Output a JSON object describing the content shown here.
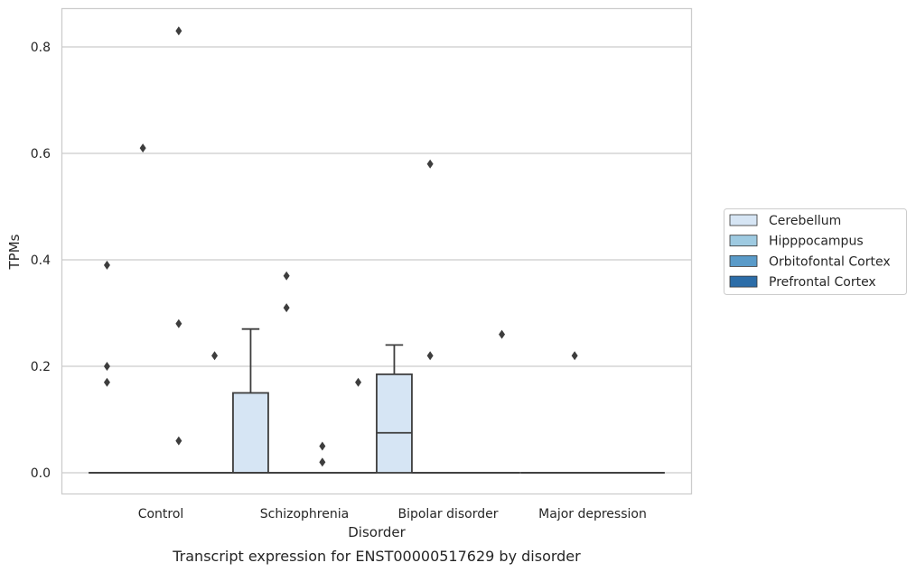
{
  "caption": "Transcript expression for ENST00000517629 by disorder",
  "chart_data": {
    "type": "box",
    "title": "",
    "xlabel": "Disorder",
    "ylabel": "TPMs",
    "ylim": [
      -0.04,
      0.87
    ],
    "yticks": [
      0.0,
      0.2,
      0.4,
      0.6,
      0.8
    ],
    "ytick_labels": [
      "0.0",
      "0.2",
      "0.4",
      "0.6",
      "0.8"
    ],
    "grid": "horizontal",
    "legend_position": "right",
    "categories": [
      "Control",
      "Schizophrenia",
      "Bipolar disorder",
      "Major depression"
    ],
    "series": [
      {
        "name": "Cerebellum",
        "color": "#d6e5f4",
        "boxes": [
          {
            "q1": 0,
            "median": 0,
            "q3": 0,
            "whisker_low": 0,
            "whisker_high": 0,
            "outliers": [
              0.39,
              0.2,
              0.17
            ]
          },
          {
            "q1": 0,
            "median": 0,
            "q3": 0.15,
            "whisker_low": 0,
            "whisker_high": 0.27,
            "outliers": []
          },
          {
            "q1": 0,
            "median": 0.075,
            "q3": 0.185,
            "whisker_low": 0,
            "whisker_high": 0.24,
            "outliers": []
          },
          {
            "q1": 0,
            "median": 0,
            "q3": 0,
            "whisker_low": 0,
            "whisker_high": 0,
            "outliers": []
          }
        ]
      },
      {
        "name": "Hipppocampus",
        "color": "#9ecae1",
        "boxes": [
          {
            "q1": 0,
            "median": 0,
            "q3": 0,
            "whisker_low": 0,
            "whisker_high": 0,
            "outliers": [
              0.61
            ]
          },
          {
            "q1": 0,
            "median": 0,
            "q3": 0,
            "whisker_low": 0,
            "whisker_high": 0,
            "outliers": [
              0.37,
              0.31
            ]
          },
          {
            "q1": 0,
            "median": 0,
            "q3": 0,
            "whisker_low": 0,
            "whisker_high": 0,
            "outliers": [
              0.58,
              0.22
            ]
          },
          {
            "q1": 0,
            "median": 0,
            "q3": 0,
            "whisker_low": 0,
            "whisker_high": 0,
            "outliers": [
              0.22
            ]
          }
        ]
      },
      {
        "name": "Orbitofontal Cortex",
        "color": "#5a9bc9",
        "boxes": [
          {
            "q1": 0,
            "median": 0,
            "q3": 0,
            "whisker_low": 0,
            "whisker_high": 0,
            "outliers": [
              0.83,
              0.28,
              0.06
            ]
          },
          {
            "q1": 0,
            "median": 0,
            "q3": 0,
            "whisker_low": 0,
            "whisker_high": 0,
            "outliers": [
              0.05,
              0.02
            ]
          },
          {
            "q1": 0,
            "median": 0,
            "q3": 0,
            "whisker_low": 0,
            "whisker_high": 0,
            "outliers": []
          },
          {
            "q1": 0,
            "median": 0,
            "q3": 0,
            "whisker_low": 0,
            "whisker_high": 0,
            "outliers": []
          }
        ]
      },
      {
        "name": "Prefrontal Cortex",
        "color": "#2c6da8",
        "boxes": [
          {
            "q1": 0,
            "median": 0,
            "q3": 0,
            "whisker_low": 0,
            "whisker_high": 0,
            "outliers": [
              0.22
            ]
          },
          {
            "q1": 0,
            "median": 0,
            "q3": 0,
            "whisker_low": 0,
            "whisker_high": 0,
            "outliers": [
              0.17
            ]
          },
          {
            "q1": 0,
            "median": 0,
            "q3": 0,
            "whisker_low": 0,
            "whisker_high": 0,
            "outliers": [
              0.26
            ]
          },
          {
            "q1": 0,
            "median": 0,
            "q3": 0,
            "whisker_low": 0,
            "whisker_high": 0,
            "outliers": []
          }
        ]
      }
    ]
  }
}
